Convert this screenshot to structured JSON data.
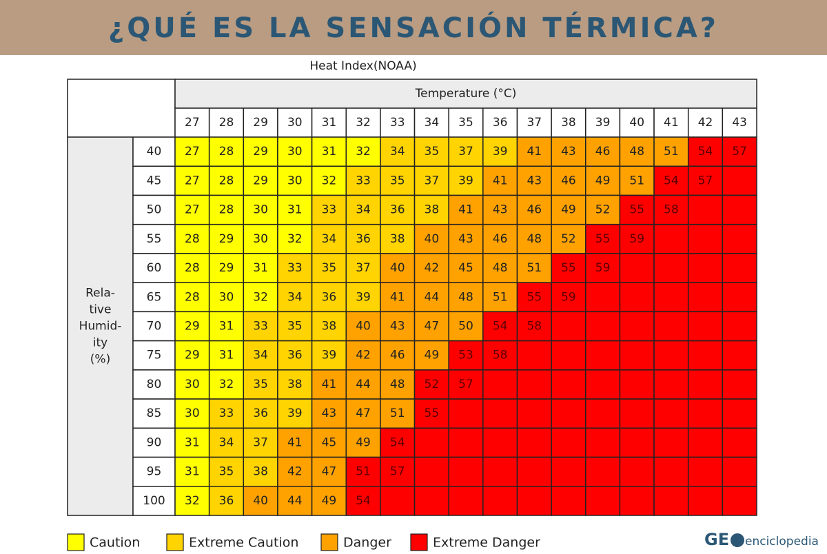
{
  "header": {
    "title": "¿QUÉ ES LA SENSACIÓN TÉRMICA?"
  },
  "table": {
    "title": "Heat Index(NOAA)",
    "temperature_label": "Temperature (°C)",
    "temperatures": [
      27,
      28,
      29,
      30,
      31,
      32,
      33,
      34,
      35,
      36,
      37,
      38,
      39,
      40,
      41,
      42,
      43
    ],
    "humidity_label": [
      "Rela-",
      "tive",
      "Humid-",
      "ity",
      "(%)"
    ],
    "rows": [
      {
        "humidity": 40,
        "values": [
          27,
          28,
          29,
          30,
          31,
          32,
          34,
          35,
          37,
          39,
          41,
          43,
          46,
          48,
          51,
          54,
          57
        ],
        "levels": [
          0,
          0,
          0,
          0,
          0,
          0,
          1,
          1,
          1,
          1,
          2,
          2,
          2,
          2,
          2,
          3,
          3
        ]
      },
      {
        "humidity": 45,
        "values": [
          27,
          28,
          29,
          30,
          32,
          33,
          35,
          37,
          39,
          41,
          43,
          46,
          49,
          51,
          54,
          57,
          null
        ],
        "levels": [
          0,
          0,
          0,
          0,
          0,
          1,
          1,
          1,
          1,
          2,
          2,
          2,
          2,
          2,
          3,
          3,
          3
        ]
      },
      {
        "humidity": 50,
        "values": [
          27,
          28,
          30,
          31,
          33,
          34,
          36,
          38,
          41,
          43,
          46,
          49,
          52,
          55,
          58,
          null,
          null
        ],
        "levels": [
          0,
          0,
          0,
          0,
          1,
          1,
          1,
          1,
          2,
          2,
          2,
          2,
          2,
          3,
          3,
          3,
          3
        ]
      },
      {
        "humidity": 55,
        "values": [
          28,
          29,
          30,
          32,
          34,
          36,
          38,
          40,
          43,
          46,
          48,
          52,
          55,
          59,
          null,
          null,
          null
        ],
        "levels": [
          0,
          0,
          0,
          0,
          1,
          1,
          1,
          2,
          2,
          2,
          2,
          2,
          3,
          3,
          3,
          3,
          3
        ]
      },
      {
        "humidity": 60,
        "values": [
          28,
          29,
          31,
          33,
          35,
          37,
          40,
          42,
          45,
          48,
          51,
          55,
          59,
          null,
          null,
          null,
          null
        ],
        "levels": [
          0,
          0,
          0,
          1,
          1,
          1,
          2,
          2,
          2,
          2,
          2,
          3,
          3,
          3,
          3,
          3,
          3
        ]
      },
      {
        "humidity": 65,
        "values": [
          28,
          30,
          32,
          34,
          36,
          39,
          41,
          44,
          48,
          51,
          55,
          59,
          null,
          null,
          null,
          null,
          null
        ],
        "levels": [
          0,
          0,
          0,
          1,
          1,
          1,
          2,
          2,
          2,
          2,
          3,
          3,
          3,
          3,
          3,
          3,
          3
        ]
      },
      {
        "humidity": 70,
        "values": [
          29,
          31,
          33,
          35,
          38,
          40,
          43,
          47,
          50,
          54,
          58,
          null,
          null,
          null,
          null,
          null,
          null
        ],
        "levels": [
          0,
          0,
          1,
          1,
          1,
          2,
          2,
          2,
          2,
          3,
          3,
          3,
          3,
          3,
          3,
          3,
          3
        ]
      },
      {
        "humidity": 75,
        "values": [
          29,
          31,
          34,
          36,
          39,
          42,
          46,
          49,
          53,
          58,
          null,
          null,
          null,
          null,
          null,
          null,
          null
        ],
        "levels": [
          0,
          0,
          1,
          1,
          1,
          2,
          2,
          2,
          3,
          3,
          3,
          3,
          3,
          3,
          3,
          3,
          3
        ]
      },
      {
        "humidity": 80,
        "values": [
          30,
          32,
          35,
          38,
          41,
          44,
          48,
          52,
          57,
          null,
          null,
          null,
          null,
          null,
          null,
          null,
          null
        ],
        "levels": [
          0,
          0,
          1,
          1,
          2,
          2,
          2,
          3,
          3,
          3,
          3,
          3,
          3,
          3,
          3,
          3,
          3
        ]
      },
      {
        "humidity": 85,
        "values": [
          30,
          33,
          36,
          39,
          43,
          47,
          51,
          55,
          null,
          null,
          null,
          null,
          null,
          null,
          null,
          null,
          null
        ],
        "levels": [
          0,
          1,
          1,
          1,
          2,
          2,
          2,
          3,
          3,
          3,
          3,
          3,
          3,
          3,
          3,
          3,
          3
        ]
      },
      {
        "humidity": 90,
        "values": [
          31,
          34,
          37,
          41,
          45,
          49,
          54,
          null,
          null,
          null,
          null,
          null,
          null,
          null,
          null,
          null,
          null
        ],
        "levels": [
          0,
          1,
          1,
          2,
          2,
          2,
          3,
          3,
          3,
          3,
          3,
          3,
          3,
          3,
          3,
          3,
          3
        ]
      },
      {
        "humidity": 95,
        "values": [
          31,
          35,
          38,
          42,
          47,
          51,
          57,
          null,
          null,
          null,
          null,
          null,
          null,
          null,
          null,
          null,
          null
        ],
        "levels": [
          0,
          1,
          1,
          2,
          2,
          3,
          3,
          3,
          3,
          3,
          3,
          3,
          3,
          3,
          3,
          3,
          3
        ]
      },
      {
        "humidity": 100,
        "values": [
          32,
          36,
          40,
          44,
          49,
          54,
          null,
          null,
          null,
          null,
          null,
          null,
          null,
          null,
          null,
          null,
          null
        ],
        "levels": [
          0,
          1,
          2,
          2,
          2,
          3,
          3,
          3,
          3,
          3,
          3,
          3,
          3,
          3,
          3,
          3,
          3
        ]
      }
    ]
  },
  "legend": [
    {
      "label": "Caution",
      "color": "#ffff00"
    },
    {
      "label": "Extreme Caution",
      "color": "#ffd400"
    },
    {
      "label": "Danger",
      "color": "#ffa200"
    },
    {
      "label": "Extreme Danger",
      "color": "#ff0000"
    }
  ],
  "logo": {
    "brand": "GE",
    "suffix": "enciclopedia"
  }
}
